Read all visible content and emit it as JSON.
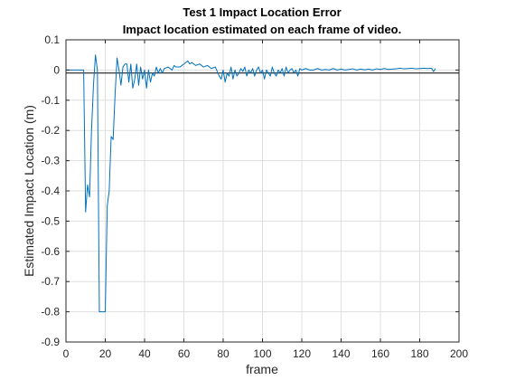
{
  "chart_data": {
    "type": "line",
    "title": [
      "Test 1 Impact Location Error",
      "Impact location estimated on each frame of video."
    ],
    "xlabel": "frame",
    "ylabel": "Estimated Impact Location (m)",
    "xlim": [
      0,
      200
    ],
    "ylim": [
      -0.9,
      0.1
    ],
    "xticks": [
      0,
      20,
      40,
      60,
      80,
      100,
      120,
      140,
      160,
      180,
      200
    ],
    "yticks": [
      0.1,
      0,
      -0.1,
      -0.2,
      -0.3,
      -0.4,
      -0.5,
      -0.6,
      -0.7,
      -0.8,
      -0.9
    ],
    "xtick_labels": [
      "0",
      "20",
      "40",
      "60",
      "80",
      "100",
      "120",
      "140",
      "160",
      "180",
      "200"
    ],
    "ytick_labels": [
      "0.1",
      "0",
      "-0.1",
      "-0.2",
      "-0.3",
      "-0.4",
      "-0.5",
      "-0.6",
      "-0.7",
      "-0.8",
      "-0.9"
    ],
    "grid": true,
    "colors": {
      "series": "#0072bd",
      "reference_line": "#000000",
      "grid": "#dfdfdf",
      "axes": "#262626"
    },
    "reference_line": {
      "y": -0.01
    },
    "series": [
      {
        "x": [
          0,
          9,
          10,
          11,
          12,
          13,
          14,
          15,
          16,
          17,
          18,
          19,
          20,
          21,
          22,
          23,
          24,
          25,
          26,
          27,
          28,
          29,
          30,
          31,
          32,
          33,
          34,
          35,
          36,
          37,
          38,
          39,
          40,
          41,
          42,
          43,
          44,
          45,
          46,
          47,
          48,
          49,
          50,
          52,
          54,
          55,
          56,
          58,
          60,
          62,
          63,
          64,
          66,
          68,
          70,
          72,
          74,
          76,
          78,
          79,
          80,
          81,
          82,
          83,
          84,
          85,
          86,
          87,
          88,
          89,
          90,
          91,
          92,
          93,
          94,
          95,
          96,
          97,
          98,
          99,
          100,
          101,
          102,
          103,
          104,
          105,
          106,
          107,
          108,
          109,
          110,
          111,
          112,
          113,
          114,
          115,
          116,
          117,
          118,
          119,
          120,
          122,
          124,
          126,
          128,
          130,
          132,
          134,
          136,
          138,
          140,
          142,
          144,
          146,
          148,
          150,
          152,
          154,
          156,
          158,
          160,
          162,
          164,
          166,
          168,
          170,
          172,
          174,
          176,
          178,
          180,
          182,
          184,
          186,
          187,
          188
        ],
        "y": [
          0.0,
          0.0,
          -0.47,
          -0.38,
          -0.42,
          -0.2,
          -0.05,
          0.05,
          0.0,
          -0.8,
          -0.8,
          -0.8,
          -0.8,
          -0.45,
          -0.4,
          -0.22,
          -0.23,
          -0.08,
          0.04,
          0.0,
          -0.05,
          0.01,
          0.02,
          0.02,
          -0.04,
          0.02,
          -0.06,
          -0.03,
          0.02,
          -0.05,
          0.01,
          -0.03,
          0.0,
          -0.06,
          0.0,
          -0.04,
          -0.01,
          -0.02,
          0.01,
          -0.01,
          0.005,
          -0.01,
          0.005,
          0.01,
          0.0,
          0.015,
          0.01,
          0.01,
          0.02,
          0.03,
          0.02,
          0.025,
          0.015,
          0.02,
          0.01,
          0.015,
          0.005,
          0.01,
          -0.02,
          -0.03,
          0.0,
          -0.04,
          -0.01,
          -0.02,
          0.01,
          -0.03,
          0.0,
          -0.02,
          -0.01,
          0.005,
          -0.005,
          0.01,
          -0.02,
          0.0,
          -0.01,
          0.005,
          -0.02,
          0.0,
          0.01,
          -0.01,
          0.0,
          -0.03,
          0.0,
          -0.01,
          -0.02,
          0.01,
          -0.01,
          -0.02,
          0.0,
          -0.01,
          0.005,
          -0.02,
          0.01,
          -0.01,
          0.0,
          0.005,
          -0.01,
          0.0,
          -0.02,
          0.005,
          0.0,
          0.005,
          0.0,
          0.0,
          0.005,
          0.0,
          0.002,
          0.0,
          0.005,
          0.0,
          0.003,
          0.0,
          0.002,
          0.004,
          0.0,
          0.003,
          0.001,
          0.003,
          0.0,
          0.004,
          0.002,
          0.005,
          0.002,
          0.003,
          0.004,
          0.006,
          0.004,
          0.005,
          0.006,
          0.004,
          0.005,
          0.006,
          0.005,
          0.006,
          -0.005,
          0.005
        ]
      }
    ]
  }
}
